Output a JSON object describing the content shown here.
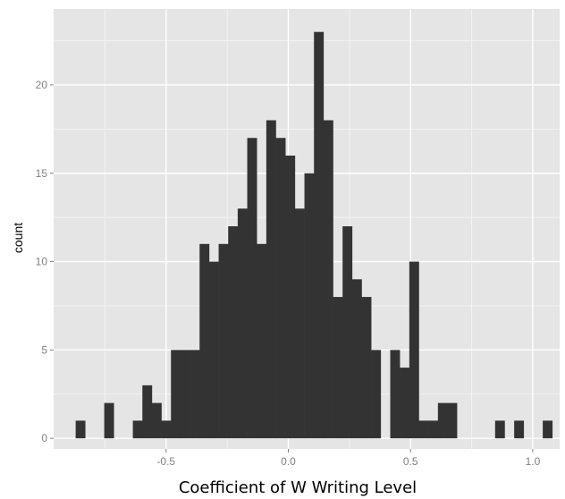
{
  "chart_data": {
    "type": "bar",
    "subtype": "histogram",
    "title": "",
    "xlabel": "Coefficient  of W Writing Level",
    "ylabel": "count",
    "xlim": [
      -0.96,
      1.11
    ],
    "ylim": [
      -0.6,
      24.3
    ],
    "x_ticks": [
      -0.5,
      0.0,
      0.5,
      1.0
    ],
    "x_tick_labels": [
      "-0.5",
      "0.0",
      "0.5",
      "1.0"
    ],
    "y_ticks": [
      0,
      5,
      10,
      15,
      20
    ],
    "y_tick_labels": [
      "0",
      "5",
      "10",
      "15",
      "20"
    ],
    "grid": true,
    "bin_width": 0.0389,
    "bins": [
      {
        "x0": -0.87,
        "count": 1
      },
      {
        "x0": -0.753,
        "count": 2
      },
      {
        "x0": -0.636,
        "count": 1
      },
      {
        "x0": -0.597,
        "count": 3
      },
      {
        "x0": -0.558,
        "count": 2
      },
      {
        "x0": -0.519,
        "count": 1
      },
      {
        "x0": -0.48,
        "count": 5
      },
      {
        "x0": -0.441,
        "count": 5
      },
      {
        "x0": -0.402,
        "count": 5
      },
      {
        "x0": -0.363,
        "count": 11
      },
      {
        "x0": -0.324,
        "count": 10
      },
      {
        "x0": -0.285,
        "count": 11
      },
      {
        "x0": -0.246,
        "count": 12
      },
      {
        "x0": -0.207,
        "count": 13
      },
      {
        "x0": -0.168,
        "count": 17
      },
      {
        "x0": -0.129,
        "count": 11
      },
      {
        "x0": -0.09,
        "count": 18
      },
      {
        "x0": -0.051,
        "count": 17
      },
      {
        "x0": -0.012,
        "count": 16
      },
      {
        "x0": 0.027,
        "count": 13
      },
      {
        "x0": 0.066,
        "count": 15
      },
      {
        "x0": 0.105,
        "count": 23
      },
      {
        "x0": 0.144,
        "count": 18
      },
      {
        "x0": 0.183,
        "count": 8
      },
      {
        "x0": 0.222,
        "count": 12
      },
      {
        "x0": 0.261,
        "count": 9
      },
      {
        "x0": 0.3,
        "count": 8
      },
      {
        "x0": 0.339,
        "count": 5
      },
      {
        "x0": 0.417,
        "count": 5
      },
      {
        "x0": 0.456,
        "count": 4
      },
      {
        "x0": 0.495,
        "count": 10
      },
      {
        "x0": 0.534,
        "count": 1
      },
      {
        "x0": 0.573,
        "count": 1
      },
      {
        "x0": 0.612,
        "count": 2
      },
      {
        "x0": 0.651,
        "count": 2
      },
      {
        "x0": 0.846,
        "count": 1
      },
      {
        "x0": 0.924,
        "count": 1
      },
      {
        "x0": 1.041,
        "count": 1
      }
    ],
    "colors": {
      "panel": "#e5e5e5",
      "grid_major": "#ffffff",
      "grid_minor": "#f2f2f2",
      "bar": "#333333"
    }
  }
}
